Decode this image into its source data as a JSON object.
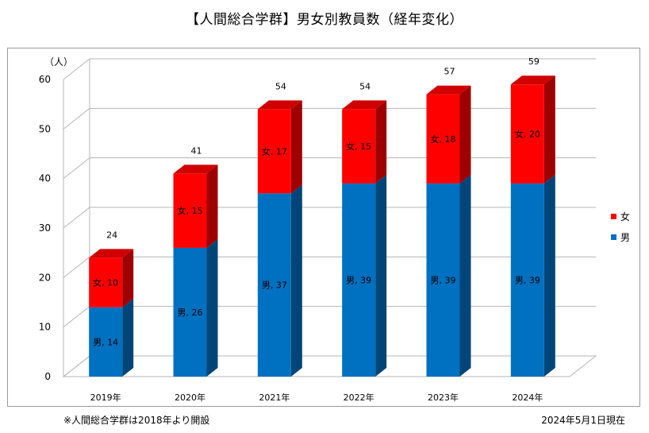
{
  "title": "【人間総合学群】男女別教員数（経年変化）",
  "footnote_left": "※人間総合学群は2018年より開設",
  "footnote_right": "2024年5月1日現在",
  "chart_data": {
    "type": "bar",
    "stacked": true,
    "three_d": true,
    "ylabel": "（人）",
    "ylim": [
      0,
      60
    ],
    "yticks": [
      0,
      10,
      20,
      30,
      40,
      50,
      60
    ],
    "grid": true,
    "legend_position": "right",
    "categories": [
      "2019年",
      "2020年",
      "2021年",
      "2022年",
      "2023年",
      "2024年"
    ],
    "series": [
      {
        "name": "男",
        "values": [
          14,
          26,
          37,
          39,
          39,
          39
        ],
        "color": "#0070c0",
        "labels": [
          "男, 14",
          "男, 26",
          "男, 37",
          "男, 39",
          "男, 39",
          "男, 39"
        ]
      },
      {
        "name": "女",
        "values": [
          10,
          15,
          17,
          15,
          18,
          20
        ],
        "color": "#ff0000",
        "labels": [
          "女, 10",
          "女, 15",
          "女, 17",
          "女, 15",
          "女, 18",
          "女, 20"
        ]
      }
    ],
    "totals": [
      "24",
      "41",
      "54",
      "54",
      "57",
      "59"
    ],
    "legend": [
      {
        "name": "女",
        "color": "#ff0000"
      },
      {
        "name": "男",
        "color": "#0070c0"
      }
    ]
  }
}
